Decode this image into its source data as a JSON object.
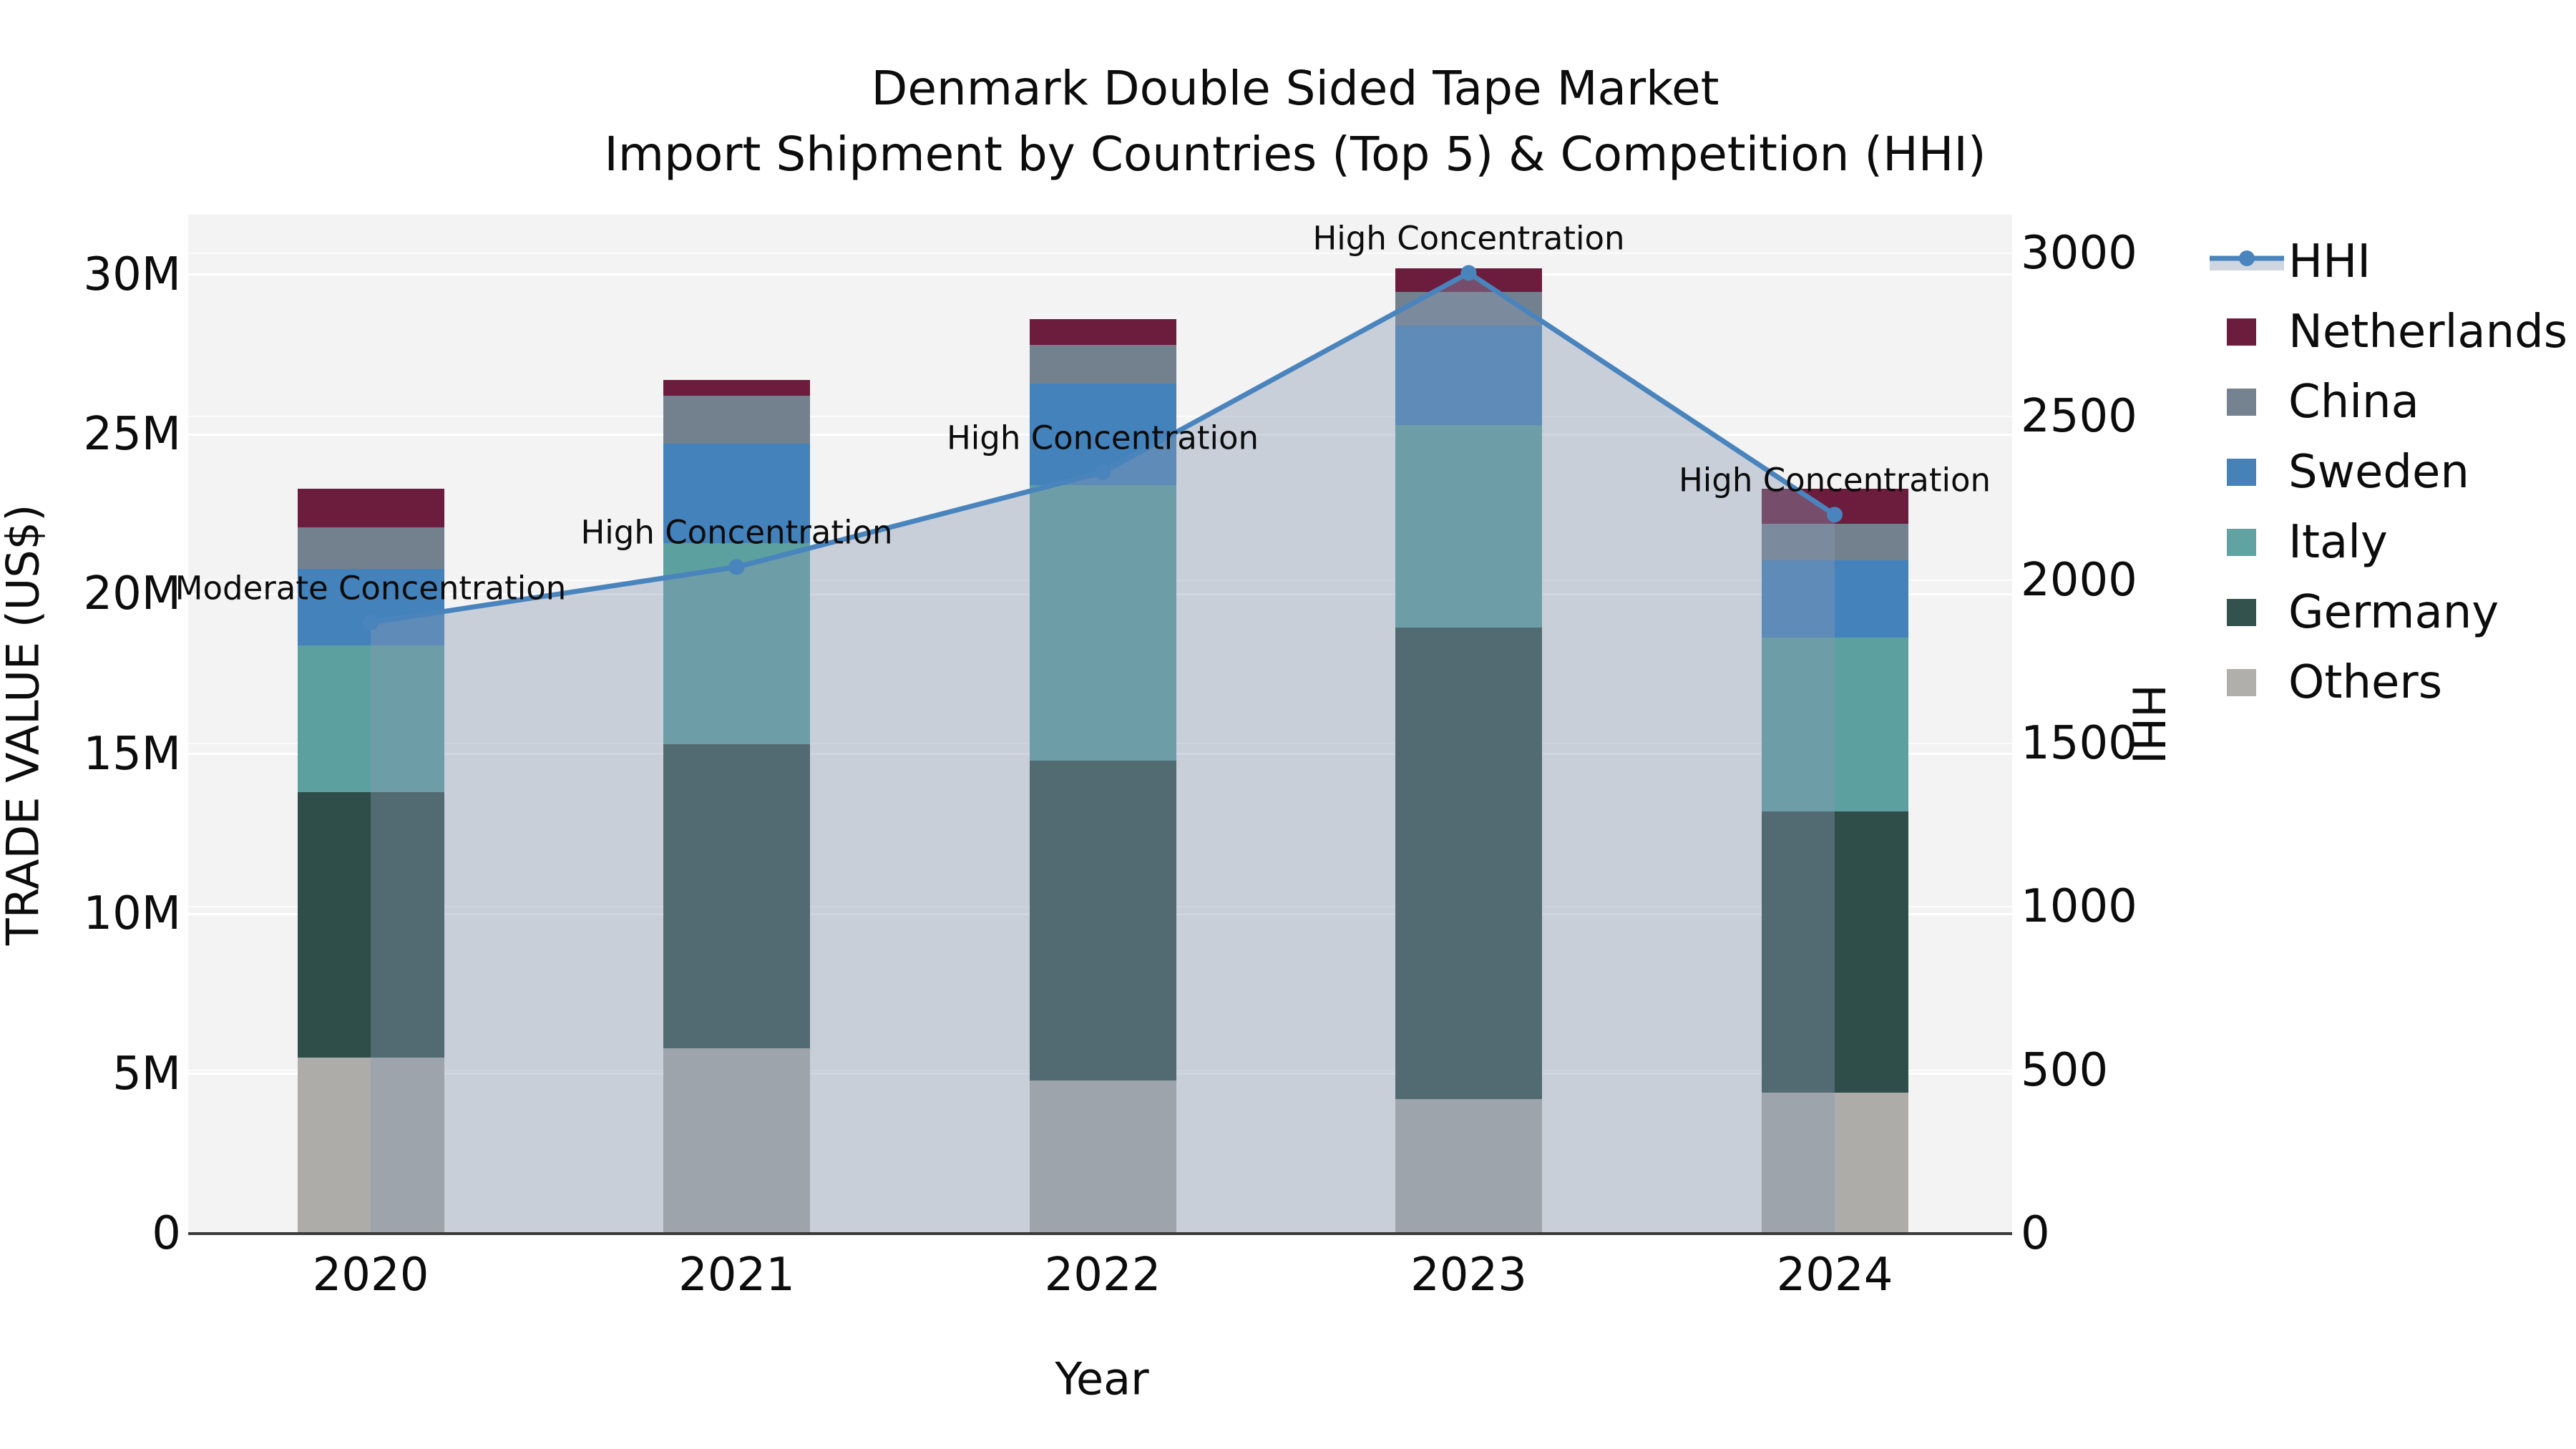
{
  "chart_data": {
    "type": "stacked-bar+line",
    "title_line1": "Denmark Double Sided Tape Market",
    "title_line2": "Import Shipment by Countries (Top 5) & Competition (HHI)",
    "xlabel": "Year",
    "ylabel_left": "TRADE VALUE (US$)",
    "ylabel_right": "HHI",
    "categories": [
      "2020",
      "2021",
      "2022",
      "2023",
      "2024"
    ],
    "values_unit": "millions of US$",
    "stack_series_bottom_to_top": [
      {
        "name": "Others",
        "color": "#adaca9",
        "values": [
          5.5,
          5.8,
          4.8,
          4.2,
          4.4
        ]
      },
      {
        "name": "Germany",
        "color": "#2f4e4a",
        "values": [
          8.3,
          9.5,
          10.0,
          14.75,
          8.8
        ]
      },
      {
        "name": "Italy",
        "color": "#5da0a0",
        "values": [
          4.6,
          6.3,
          8.6,
          6.35,
          5.45
        ]
      },
      {
        "name": "Sweden",
        "color": "#4482bb",
        "values": [
          2.4,
          3.1,
          3.2,
          3.1,
          2.4
        ]
      },
      {
        "name": "China",
        "color": "#73818e",
        "values": [
          1.3,
          1.5,
          1.2,
          1.05,
          1.15
        ]
      },
      {
        "name": "Netherlands",
        "color": "#6c1c3d",
        "values": [
          1.2,
          0.5,
          0.8,
          0.75,
          1.1
        ]
      }
    ],
    "hhi_series": {
      "name": "HHI",
      "line_color": "#4a84bd",
      "area_color": "rgba(136,152,178,0.40)",
      "values": [
        1870,
        2040,
        2330,
        2940,
        2200
      ],
      "annotations": [
        "Moderate Concentration",
        "High Concentration",
        "High Concentration",
        "High Concentration",
        "High Concentration"
      ]
    },
    "left_axis": {
      "ticks": [
        {
          "label": "0",
          "value": 0
        },
        {
          "label": "5M",
          "value": 5
        },
        {
          "label": "10M",
          "value": 10
        },
        {
          "label": "15M",
          "value": 15
        },
        {
          "label": "20M",
          "value": 20
        },
        {
          "label": "25M",
          "value": 25
        },
        {
          "label": "30M",
          "value": 30
        }
      ]
    },
    "right_axis": {
      "ticks": [
        {
          "label": "0",
          "value": 0
        },
        {
          "label": "500",
          "value": 500
        },
        {
          "label": "1000",
          "value": 1000
        },
        {
          "label": "1500",
          "value": 1500
        },
        {
          "label": "2000",
          "value": 2000
        },
        {
          "label": "2500",
          "value": 2500
        },
        {
          "label": "3000",
          "value": 3000
        }
      ]
    },
    "legend": [
      {
        "label": "HHI",
        "type": "line",
        "color": "#4a84bd"
      },
      {
        "label": "Netherlands",
        "type": "patch",
        "color": "#6c1c3d"
      },
      {
        "label": "China",
        "type": "patch",
        "color": "#75828f"
      },
      {
        "label": "Sweden",
        "type": "patch",
        "color": "#4682b8"
      },
      {
        "label": "Italy",
        "type": "patch",
        "color": "#61a2a2"
      },
      {
        "label": "Germany",
        "type": "patch",
        "color": "#33514d"
      },
      {
        "label": "Others",
        "type": "patch",
        "color": "#b0afac"
      }
    ],
    "style": {
      "plot_background": "#f3f3f4",
      "gridline_color": "#ffffff",
      "spine_color": "#3a3a3a",
      "text_color": "#0c0c0c"
    }
  }
}
